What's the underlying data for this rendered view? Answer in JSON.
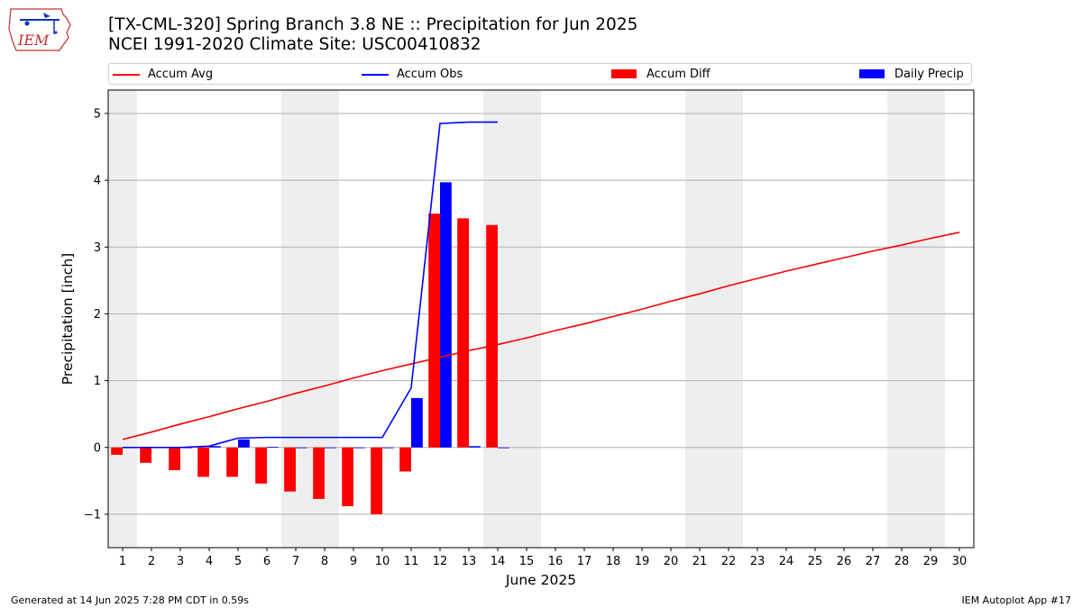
{
  "header": {
    "title_line1": "[TX-CML-320] Spring Branch 3.8 NE :: Precipitation for Jun 2025",
    "title_line2": "NCEI 1991-2020 Climate Site: USC00410832"
  },
  "logo": {
    "text": "IEM",
    "icon": "iowa-state-map-icon"
  },
  "footer": {
    "left": "Generated at 14 Jun 2025 7:28 PM CDT in 0.59s",
    "right": "IEM Autoplot App #17"
  },
  "colors": {
    "avg": "#ff0000",
    "obs": "#0000ff",
    "diff": "#ff0000",
    "daily": "#0000ff",
    "weekend": "#eeeeee",
    "grid": "#b0b0b0"
  },
  "chart_data": {
    "type": "bar",
    "xlabel": "June 2025",
    "ylabel": "Precipitation [inch]",
    "ylim": [
      -1.5,
      5.35
    ],
    "xlim": [
      0.5,
      30.5
    ],
    "yticks": [
      -1,
      0,
      1,
      2,
      3,
      4,
      5
    ],
    "ytick_labels": [
      "−1",
      "0",
      "1",
      "2",
      "3",
      "4",
      "5"
    ],
    "days": [
      1,
      2,
      3,
      4,
      5,
      6,
      7,
      8,
      9,
      10,
      11,
      12,
      13,
      14,
      15,
      16,
      17,
      18,
      19,
      20,
      21,
      22,
      23,
      24,
      25,
      26,
      27,
      28,
      29,
      30
    ],
    "weekend_days": [
      1,
      7,
      8,
      14,
      15,
      21,
      22,
      28,
      29
    ],
    "grid": true,
    "legend_position": "top",
    "series": [
      {
        "name": "Accum Avg",
        "kind": "line",
        "color": "#ff0000",
        "values": [
          0.12,
          0.23,
          0.35,
          0.46,
          0.58,
          0.69,
          0.81,
          0.92,
          1.04,
          1.15,
          1.25,
          1.35,
          1.45,
          1.54,
          1.64,
          1.75,
          1.85,
          1.96,
          2.07,
          2.19,
          2.3,
          2.42,
          2.53,
          2.64,
          2.74,
          2.84,
          2.94,
          3.03,
          3.13,
          3.22
        ]
      },
      {
        "name": "Accum Obs",
        "kind": "line",
        "color": "#0000ff",
        "values": [
          0.0,
          0.0,
          0.0,
          0.02,
          0.14,
          0.15,
          0.15,
          0.15,
          0.15,
          0.15,
          0.89,
          4.85,
          4.87,
          4.87
        ]
      },
      {
        "name": "Accum Diff",
        "kind": "bar",
        "color": "#ff0000",
        "offset": -0.2,
        "values": [
          -0.11,
          -0.23,
          -0.34,
          -0.44,
          -0.44,
          -0.54,
          -0.66,
          -0.77,
          -0.88,
          -1.0,
          -0.36,
          3.5,
          3.43,
          3.33
        ]
      },
      {
        "name": "Daily Precip",
        "kind": "bar",
        "color": "#0000ff",
        "offset": 0.2,
        "values": [
          0.0,
          0.0,
          0.0,
          0.02,
          0.12,
          0.01,
          0.0,
          0.0,
          0.0,
          0.0,
          0.74,
          3.97,
          0.02,
          0.0
        ]
      }
    ]
  }
}
